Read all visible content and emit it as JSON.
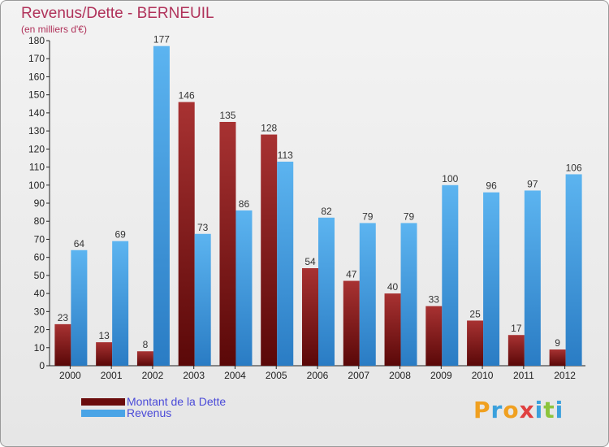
{
  "header": {
    "title": "Revenus/Dette - BERNEUIL",
    "subtitle": "(en milliers d'€)"
  },
  "chart_data": {
    "type": "bar",
    "categories": [
      "2000",
      "2001",
      "2002",
      "2003",
      "2004",
      "2005",
      "2006",
      "2007",
      "2008",
      "2009",
      "2010",
      "2011",
      "2012"
    ],
    "series": [
      {
        "name": "Montant de la Dette",
        "color": "#7b0f0f",
        "values": [
          23,
          13,
          8,
          146,
          135,
          128,
          54,
          47,
          40,
          33,
          25,
          17,
          9
        ]
      },
      {
        "name": "Revenus",
        "color": "#4aa4e6",
        "values": [
          64,
          69,
          177,
          73,
          86,
          113,
          82,
          79,
          79,
          100,
          96,
          97,
          106
        ]
      }
    ],
    "yticks": [
      0,
      10,
      20,
      30,
      40,
      50,
      60,
      70,
      80,
      90,
      100,
      110,
      120,
      130,
      140,
      150,
      160,
      170,
      180
    ],
    "ylim": [
      0,
      180
    ],
    "grid": false,
    "legend": "bottom-left",
    "data_labels": true
  },
  "legend": {
    "items": [
      {
        "label": "Montant de la Dette",
        "color": "#7b0f0f"
      },
      {
        "label": "Revenus",
        "color": "#4aa4e6"
      }
    ]
  },
  "logo": {
    "text": "Proxiti",
    "letters": [
      {
        "ch": "P",
        "color": "#f0a020"
      },
      {
        "ch": "r",
        "color": "#3aa0dc"
      },
      {
        "ch": "o",
        "color": "#f0a020"
      },
      {
        "ch": "x",
        "color": "#e04040"
      },
      {
        "ch": "i",
        "color": "#3aa0dc"
      },
      {
        "ch": "t",
        "color": "#8cc43c"
      },
      {
        "ch": "i",
        "color": "#3aa0dc"
      }
    ]
  }
}
